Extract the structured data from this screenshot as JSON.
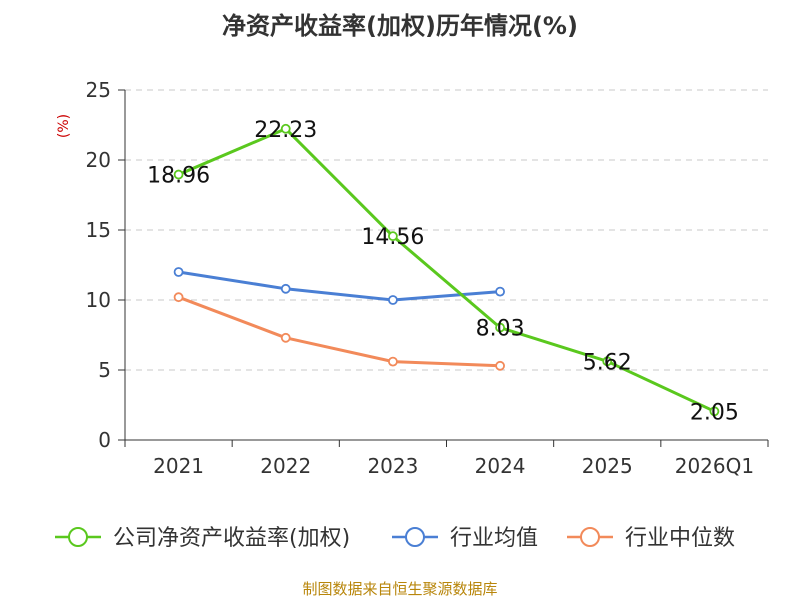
{
  "title": "净资产收益率(加权)历年情况(%)",
  "footer": "制图数据来自恒生聚源数据库",
  "colors": {
    "company": "#5ac81e",
    "industry_avg": "#4a7fd4",
    "industry_median": "#f28a5a"
  },
  "chart_data": {
    "type": "line",
    "title": "净资产收益率(加权)历年情况(%)",
    "ylabel": "(%)",
    "xlabel": "",
    "ylim": [
      0,
      25
    ],
    "yticks": [
      0,
      5,
      10,
      15,
      20,
      25
    ],
    "categories": [
      "2021",
      "2022",
      "2023",
      "2024",
      "2025",
      "2026Q1"
    ],
    "grid": true,
    "legend": "bottom",
    "series": [
      {
        "name": "公司净资产收益率(加权)",
        "values": [
          18.96,
          22.23,
          14.56,
          8.03,
          5.62,
          2.05
        ],
        "labels": [
          "18.96",
          "22.23",
          "14.56",
          "8.03",
          "5.62",
          "2.05"
        ]
      },
      {
        "name": "行业均值",
        "values": [
          12.0,
          10.8,
          10.0,
          10.6,
          null,
          null
        ]
      },
      {
        "name": "行业中位数",
        "values": [
          10.2,
          7.3,
          5.6,
          5.3,
          null,
          null
        ]
      }
    ]
  }
}
